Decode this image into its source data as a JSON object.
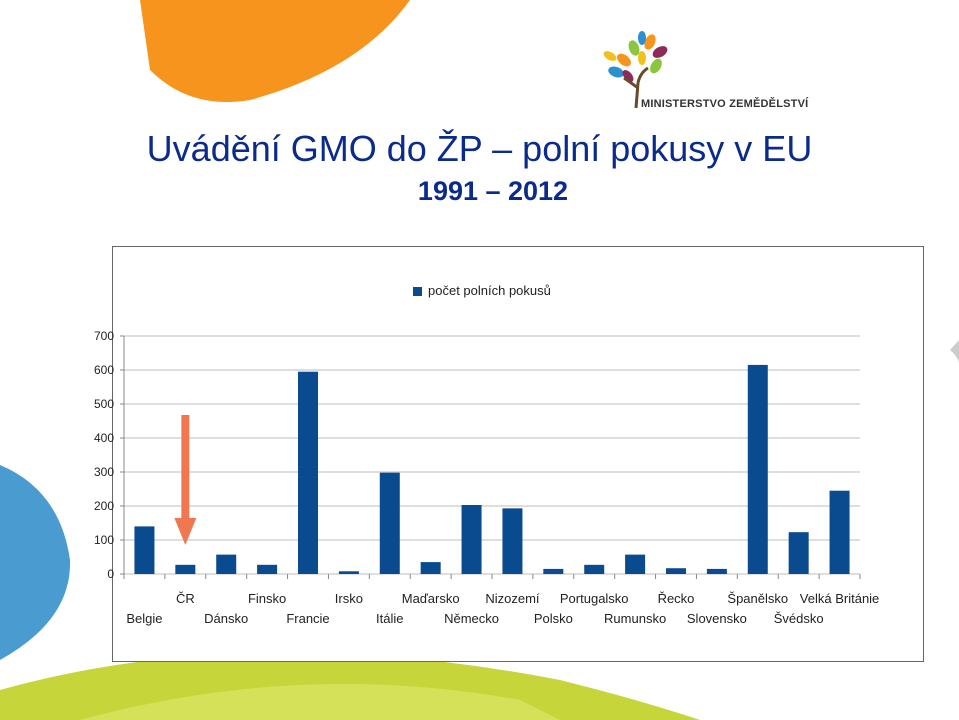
{
  "slide": {
    "title": "Uvádění GMO do ŽP – polní pokusy v EU",
    "subtitle": "1991 – 2012",
    "logo_text": "MINISTERSTVO ZEMĚDĚLSTVÍ"
  },
  "colors": {
    "title": "#0a2a8c",
    "bar": "#0a4a8f",
    "arrow": "#f07850",
    "deco_orange": "#f7941d",
    "deco_green": "#c6d63a",
    "deco_blue": "#4a9cd0"
  },
  "chart_data": {
    "type": "bar",
    "categories": [
      "Belgie",
      "ČR",
      "Dánsko",
      "Finsko",
      "Francie",
      "Irsko",
      "Itálie",
      "Maďarsko",
      "Německo",
      "Nizozemí",
      "Polsko",
      "Portugalsko",
      "Rumunsko",
      "Řecko",
      "Slovensko",
      "Španělsko",
      "Švédsko",
      "Velká Británie"
    ],
    "series": [
      {
        "name": "počet polních pokusů",
        "values": [
          140,
          27,
          57,
          27,
          595,
          8,
          298,
          35,
          203,
          193,
          15,
          27,
          57,
          17,
          15,
          615,
          123,
          245
        ]
      }
    ],
    "yticks": [
      0,
      100,
      200,
      300,
      400,
      500,
      600,
      700
    ],
    "ylim": [
      0,
      700
    ],
    "grid": true,
    "legend": "top",
    "highlight_category": "ČR"
  }
}
